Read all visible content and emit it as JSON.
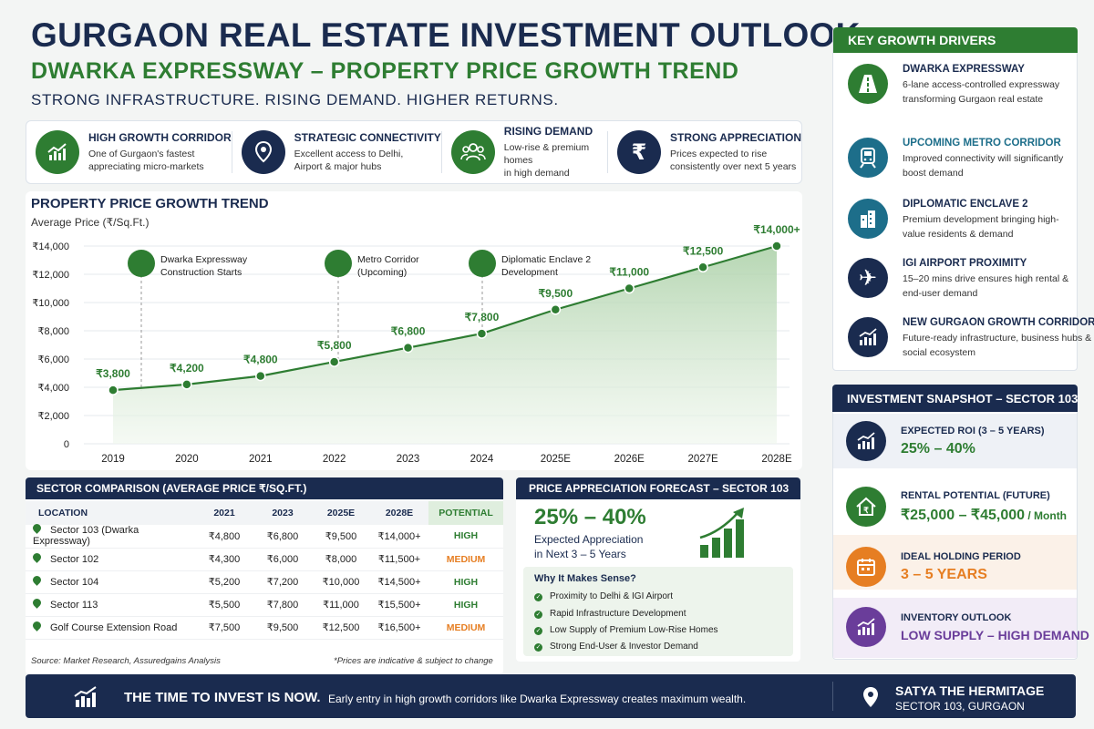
{
  "header": {
    "title": "GURGAON REAL ESTATE INVESTMENT OUTLOOK",
    "subtitle": "DWARKA EXPRESSWAY – PROPERTY PRICE GROWTH TREND",
    "tagline": "STRONG INFRASTRUCTURE. RISING DEMAND. HIGHER RETURNS."
  },
  "features": [
    {
      "title": "HIGH GROWTH CORRIDOR",
      "desc1": "One of Gurgaon's fastest",
      "desc2": "appreciating micro-markets",
      "icon": "growth-chart-icon",
      "color": "#2e7d32"
    },
    {
      "title": "STRATEGIC CONNECTIVITY",
      "desc1": "Excellent access to Delhi,",
      "desc2": "Airport & major hubs",
      "icon": "location-pin-icon",
      "color": "#1a2b4f"
    },
    {
      "title": "RISING DEMAND",
      "desc1": "Low-rise & premium homes",
      "desc2": "in high demand",
      "icon": "people-icon",
      "color": "#2e7d32"
    },
    {
      "title": "STRONG APPRECIATION",
      "desc1": "Prices expected to rise",
      "desc2": "consistently over next 5 years",
      "icon": "rupee-icon",
      "color": "#1a2b4f"
    }
  ],
  "chart": {
    "title": "PROPERTY PRICE GROWTH TREND",
    "ylabel": "Average Price (₹/Sq.Ft.)"
  },
  "chart_data": {
    "type": "area",
    "title": "PROPERTY PRICE GROWTH TREND",
    "xlabel": "",
    "ylabel": "Average Price (₹/Sq.Ft.)",
    "categories": [
      "2019",
      "2020",
      "2021",
      "2022",
      "2023",
      "2024",
      "2025E",
      "2026E",
      "2027E",
      "2028E"
    ],
    "values": [
      3800,
      4200,
      4800,
      5800,
      6800,
      7800,
      9500,
      11000,
      12500,
      14000
    ],
    "data_labels": [
      "₹3,800",
      "₹4,200",
      "₹4,800",
      "₹5,800",
      "₹6,800",
      "₹7,800",
      "₹9,500",
      "₹11,000",
      "₹12,500",
      "₹14,000+"
    ],
    "y_ticks": [
      0,
      2000,
      4000,
      6000,
      8000,
      10000,
      12000,
      14000
    ],
    "y_tick_labels": [
      "0",
      "₹2,000",
      "₹4,000",
      "₹6,000",
      "₹8,000",
      "₹10,000",
      "₹12,000",
      "₹14,000"
    ],
    "ylim": [
      0,
      14000
    ],
    "grid": "horizontal",
    "annotations": [
      {
        "at": "2019",
        "line1": "Dwarka Expressway",
        "line2": "Construction Starts",
        "icon": "road-icon"
      },
      {
        "at": "2022",
        "line1": "Metro Corridor",
        "line2": "(Upcoming)",
        "icon": "metro-icon"
      },
      {
        "at": "2024",
        "line1": "Diplomatic Enclave 2",
        "line2": "Development",
        "icon": "building-icon"
      }
    ],
    "colors": {
      "line": "#2e7d32",
      "fill": "#cfe3cc",
      "label": "#2e7d32"
    }
  },
  "sector": {
    "header": "SECTOR COMPARISON (AVERAGE PRICE ₹/SQ.FT.)",
    "columns": [
      "LOCATION",
      "2021",
      "2023",
      "2025E",
      "2028E",
      "POTENTIAL"
    ],
    "rows": [
      {
        "location": "Sector 103 (Dwarka Expressway)",
        "y2021": "₹4,800",
        "y2023": "₹6,800",
        "y2025": "₹9,500",
        "y2028": "₹14,000+",
        "potential": "HIGH",
        "pcolor": "#2e7d32"
      },
      {
        "location": "Sector 102",
        "y2021": "₹4,300",
        "y2023": "₹6,000",
        "y2025": "₹8,000",
        "y2028": "₹11,500+",
        "potential": "MEDIUM",
        "pcolor": "#e67e22"
      },
      {
        "location": "Sector 104",
        "y2021": "₹5,200",
        "y2023": "₹7,200",
        "y2025": "₹10,000",
        "y2028": "₹14,500+",
        "potential": "HIGH",
        "pcolor": "#2e7d32"
      },
      {
        "location": "Sector 113",
        "y2021": "₹5,500",
        "y2023": "₹7,800",
        "y2025": "₹11,000",
        "y2028": "₹15,500+",
        "potential": "HIGH",
        "pcolor": "#2e7d32"
      },
      {
        "location": "Golf Course Extension Road",
        "y2021": "₹7,500",
        "y2023": "₹9,500",
        "y2025": "₹12,500",
        "y2028": "₹16,500+",
        "potential": "MEDIUM",
        "pcolor": "#e67e22"
      }
    ],
    "source": "Source: Market Research, Assuredgains Analysis",
    "disclaimer": "*Prices are indicative & subject to change"
  },
  "forecast": {
    "header": "PRICE APPRECIATION FORECAST – SECTOR 103",
    "range": "25% – 40%",
    "desc1": "Expected Appreciation",
    "desc2": "in Next 3 – 5 Years",
    "why_title": "Why It Makes Sense?",
    "why_items": [
      "Proximity to Delhi & IGI Airport",
      "Rapid Infrastructure Development",
      "Low Supply of Premium Low-Rise Homes",
      "Strong End-User & Investor Demand"
    ]
  },
  "drivers": {
    "header": "KEY GROWTH DRIVERS",
    "items": [
      {
        "title": "DWARKA EXPRESSWAY",
        "desc": "6-lane access-controlled expressway transforming Gurgaon real estate",
        "icon": "road-icon",
        "color": "#2e7d32",
        "tcolor": "#1a2b4f"
      },
      {
        "title": "UPCOMING METRO CORRIDOR",
        "desc": "Improved connectivity will significantly boost demand",
        "icon": "metro-icon",
        "color": "#1d6e8a",
        "tcolor": "#1d6e8a"
      },
      {
        "title": "DIPLOMATIC ENCLAVE 2",
        "desc": "Premium development bringing high-value residents & demand",
        "icon": "building-icon",
        "color": "#1d6e8a",
        "tcolor": "#1a2b4f"
      },
      {
        "title": "IGI AIRPORT PROXIMITY",
        "desc": "15–20 mins drive ensures high rental & end-user demand",
        "icon": "airplane-icon",
        "color": "#1a2b4f",
        "tcolor": "#1a2b4f"
      },
      {
        "title": "NEW GURGAON GROWTH CORRIDOR",
        "desc": "Future-ready infrastructure, business hubs & social ecosystem",
        "icon": "growth-chart-icon",
        "color": "#1a2b4f",
        "tcolor": "#1a2b4f"
      }
    ]
  },
  "snapshot": {
    "header": "INVESTMENT SNAPSHOT – SECTOR 103",
    "items": [
      {
        "label": "EXPECTED ROI (3 – 5 YEARS)",
        "value": "25% – 40%",
        "suffix": "",
        "icon": "growth-chart-icon",
        "color": "#1a2b4f",
        "vcolor": "#2e7d32",
        "bg": "#eef1f6"
      },
      {
        "label": "RENTAL POTENTIAL (FUTURE)",
        "value": "₹25,000 – ₹45,000",
        "suffix": " / Month",
        "icon": "house-rupee-icon",
        "color": "#2e7d32",
        "vcolor": "#2e7d32",
        "bg": "#ffffff"
      },
      {
        "label": "IDEAL HOLDING PERIOD",
        "value": "3 – 5 YEARS",
        "suffix": "",
        "icon": "calendar-icon",
        "color": "#e67e22",
        "vcolor": "#e67e22",
        "bg": "#fbf1e8"
      },
      {
        "label": "INVENTORY OUTLOOK",
        "value": "LOW SUPPLY – HIGH DEMAND",
        "suffix": "",
        "icon": "growth-chart-icon",
        "color": "#6a3d9a",
        "vcolor": "#6a3d9a",
        "bg": "#f2ecf7"
      }
    ]
  },
  "footer": {
    "strong": "THE TIME TO INVEST IS NOW.",
    "text": "Early entry in high growth corridors like Dwarka Expressway creates maximum wealth.",
    "project_name": "SATYA THE HERMITAGE",
    "project_location": "SECTOR 103, GURGAON"
  }
}
